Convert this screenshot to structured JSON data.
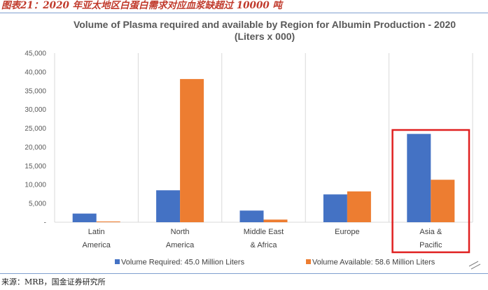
{
  "caption": "图表21：2020 年亚太地区白蛋白需求对应血浆缺超过 10000 吨",
  "source": "来源：MRB，国金证券研究所",
  "chart_data": {
    "type": "bar",
    "title_line1": "Volume of Plasma required and available by Region for Albumin Production - 2020",
    "title_line2": "(Liters x 000)",
    "categories": [
      [
        "Latin",
        "America"
      ],
      [
        "North",
        "America"
      ],
      [
        "Middle East",
        "& Africa"
      ],
      [
        "Europe",
        ""
      ],
      [
        "Asia &",
        "Pacific"
      ]
    ],
    "series": [
      {
        "name": "Volume Required: 45.0 Million Liters",
        "color": "#4472c4",
        "values": [
          2300,
          8500,
          3100,
          7400,
          23500
        ]
      },
      {
        "name": "Volume Available: 58.6 Million Liters",
        "color": "#ed7d31",
        "values": [
          200,
          38100,
          700,
          8200,
          11300
        ]
      }
    ],
    "ylim": [
      0,
      45000
    ],
    "yticks": [
      "-",
      "5,000",
      "10,000",
      "15,000",
      "20,000",
      "25,000",
      "30,000",
      "35,000",
      "40,000",
      "45,000"
    ],
    "grid": "vertical separators between categories",
    "legend": "bottom",
    "highlight": {
      "category_index": 4,
      "color": "#e02020"
    }
  }
}
